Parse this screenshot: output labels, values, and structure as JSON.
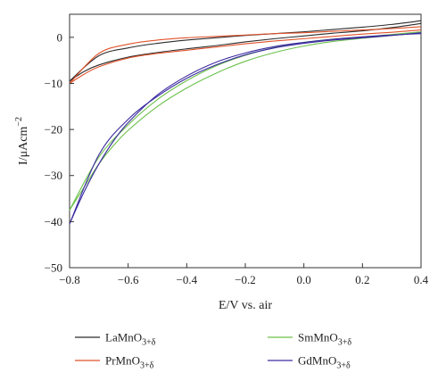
{
  "chart_data": {
    "type": "line",
    "xlabel": "E/V vs. air",
    "ylabel_main": "I/μAcm",
    "ylabel_sup": "−2",
    "xlim": [
      -0.8,
      0.4
    ],
    "ylim": [
      -50,
      5
    ],
    "xticks": [
      -0.8,
      -0.6,
      -0.4,
      -0.2,
      0.0,
      0.2,
      0.4
    ],
    "xtick_labels": [
      "−0.8",
      "−0.6",
      "−0.4",
      "−0.2",
      "0.0",
      "0.2",
      "0.4"
    ],
    "yticks": [
      0,
      -10,
      -20,
      -30,
      -40,
      -50
    ],
    "ytick_labels": [
      "0",
      "−10",
      "−20",
      "−30",
      "−40",
      "−50"
    ],
    "grid": false,
    "legend_position": "bottom, two columns",
    "series": [
      {
        "name": "LaMnO",
        "subscript": "3+δ",
        "color": "#2b2b2b",
        "forward": [
          [
            -0.8,
            -9.5
          ],
          [
            -0.75,
            -7.4
          ],
          [
            -0.7,
            -6.0
          ],
          [
            -0.6,
            -4.3
          ],
          [
            -0.5,
            -3.3
          ],
          [
            -0.4,
            -2.5
          ],
          [
            -0.3,
            -1.8
          ],
          [
            -0.2,
            -1.0
          ],
          [
            -0.1,
            -0.3
          ],
          [
            0.0,
            0.3
          ],
          [
            0.1,
            0.9
          ],
          [
            0.2,
            1.4
          ],
          [
            0.3,
            2.1
          ],
          [
            0.4,
            3.0
          ]
        ],
        "reverse": [
          [
            0.4,
            3.6
          ],
          [
            0.3,
            2.8
          ],
          [
            0.2,
            2.2
          ],
          [
            0.1,
            1.7
          ],
          [
            0.0,
            1.2
          ],
          [
            -0.1,
            0.8
          ],
          [
            -0.2,
            0.4
          ],
          [
            -0.3,
            -0.1
          ],
          [
            -0.4,
            -0.6
          ],
          [
            -0.5,
            -1.3
          ],
          [
            -0.6,
            -2.3
          ],
          [
            -0.7,
            -4.0
          ],
          [
            -0.8,
            -9.5
          ]
        ]
      },
      {
        "name": "PrMnO",
        "subscript": "3+δ",
        "color": "#e0522a",
        "forward": [
          [
            -0.8,
            -10.0
          ],
          [
            -0.75,
            -8.0
          ],
          [
            -0.7,
            -6.4
          ],
          [
            -0.6,
            -4.5
          ],
          [
            -0.5,
            -3.5
          ],
          [
            -0.4,
            -2.8
          ],
          [
            -0.3,
            -2.1
          ],
          [
            -0.2,
            -1.4
          ],
          [
            -0.1,
            -0.8
          ],
          [
            0.0,
            -0.3
          ],
          [
            0.1,
            0.2
          ],
          [
            0.2,
            0.7
          ],
          [
            0.3,
            1.1
          ],
          [
            0.4,
            1.6
          ]
        ],
        "reverse": [
          [
            0.4,
            2.3
          ],
          [
            0.3,
            1.9
          ],
          [
            0.2,
            1.6
          ],
          [
            0.1,
            1.3
          ],
          [
            0.0,
            1.0
          ],
          [
            -0.1,
            0.8
          ],
          [
            -0.2,
            0.5
          ],
          [
            -0.3,
            0.2
          ],
          [
            -0.4,
            -0.1
          ],
          [
            -0.5,
            -0.6
          ],
          [
            -0.6,
            -1.5
          ],
          [
            -0.7,
            -3.5
          ],
          [
            -0.8,
            -10.0
          ]
        ]
      },
      {
        "name": "SmMnO",
        "subscript": "3+δ",
        "color": "#6cc04a",
        "forward": [
          [
            -0.8,
            -37.5
          ],
          [
            -0.75,
            -32.5
          ],
          [
            -0.7,
            -27.5
          ],
          [
            -0.65,
            -23.5
          ],
          [
            -0.6,
            -20.2
          ],
          [
            -0.5,
            -15.0
          ],
          [
            -0.4,
            -11.0
          ],
          [
            -0.3,
            -7.8
          ],
          [
            -0.2,
            -5.2
          ],
          [
            -0.1,
            -3.3
          ],
          [
            0.0,
            -1.9
          ],
          [
            0.1,
            -0.9
          ],
          [
            0.2,
            -0.2
          ],
          [
            0.3,
            0.4
          ],
          [
            0.4,
            1.0
          ]
        ],
        "reverse": [
          [
            0.4,
            1.2
          ],
          [
            0.3,
            0.6
          ],
          [
            0.2,
            0.1
          ],
          [
            0.1,
            -0.4
          ],
          [
            0.0,
            -1.1
          ],
          [
            -0.1,
            -2.2
          ],
          [
            -0.2,
            -3.9
          ],
          [
            -0.3,
            -6.2
          ],
          [
            -0.4,
            -9.4
          ],
          [
            -0.5,
            -13.5
          ],
          [
            -0.6,
            -19.0
          ],
          [
            -0.7,
            -26.0
          ],
          [
            -0.8,
            -37.5
          ]
        ]
      },
      {
        "name": "GdMnO",
        "subscript": "3+δ",
        "color": "#3a2aa0",
        "forward": [
          [
            -0.8,
            -40.5
          ],
          [
            -0.75,
            -33.5
          ],
          [
            -0.7,
            -27.5
          ],
          [
            -0.65,
            -22.5
          ],
          [
            -0.6,
            -18.5
          ],
          [
            -0.5,
            -12.5
          ],
          [
            -0.4,
            -8.4
          ],
          [
            -0.3,
            -5.4
          ],
          [
            -0.2,
            -3.4
          ],
          [
            -0.1,
            -2.0
          ],
          [
            0.0,
            -1.1
          ],
          [
            0.1,
            -0.4
          ],
          [
            0.2,
            0.1
          ],
          [
            0.3,
            0.5
          ],
          [
            0.4,
            0.8
          ]
        ],
        "reverse": [
          [
            0.4,
            1.0
          ],
          [
            0.3,
            0.4
          ],
          [
            0.2,
            -0.1
          ],
          [
            0.1,
            -0.6
          ],
          [
            0.0,
            -1.3
          ],
          [
            -0.1,
            -2.3
          ],
          [
            -0.2,
            -3.8
          ],
          [
            -0.3,
            -6.0
          ],
          [
            -0.4,
            -8.9
          ],
          [
            -0.5,
            -12.8
          ],
          [
            -0.6,
            -17.8
          ],
          [
            -0.7,
            -25.5
          ],
          [
            -0.8,
            -40.5
          ]
        ]
      }
    ]
  }
}
